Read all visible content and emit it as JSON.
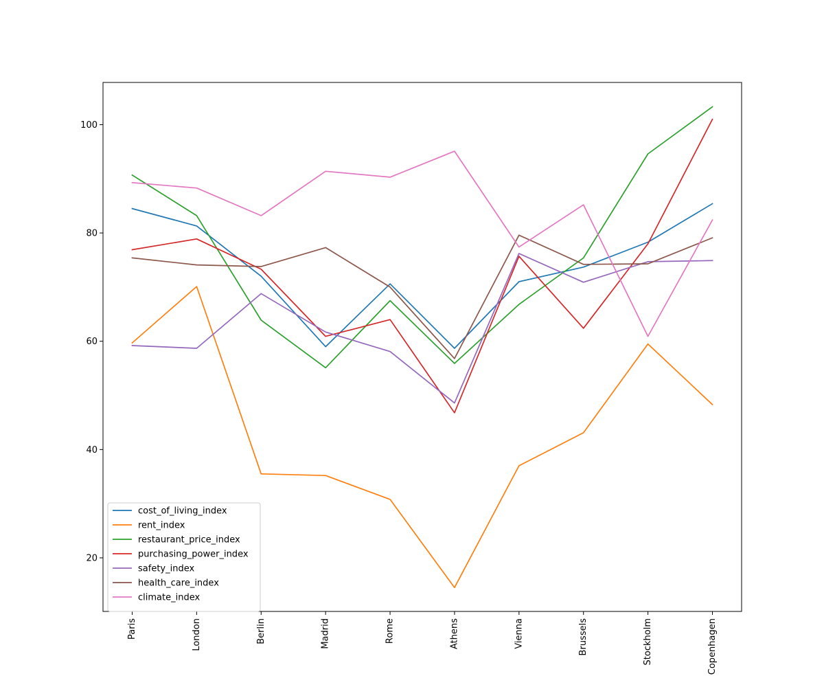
{
  "chart_data": {
    "type": "line",
    "title": "",
    "xlabel": "",
    "ylabel": "",
    "categories": [
      "Paris",
      "London",
      "Berlin",
      "Madrid",
      "Rome",
      "Athens",
      "Vienna",
      "Brussels",
      "Stockholm",
      "Copenhagen"
    ],
    "ylim": [
      10.1,
      107.8
    ],
    "yticks": [
      "20",
      "40",
      "60",
      "80",
      "100"
    ],
    "grid": false,
    "legend_position": "lower-left",
    "series": [
      {
        "name": "cost_of_living_index",
        "color": "#1f77b4",
        "values": [
          84.5,
          81.3,
          72.0,
          59.0,
          70.6,
          58.7,
          71.0,
          73.7,
          78.3,
          85.4
        ]
      },
      {
        "name": "rent_index",
        "color": "#ff7f0e",
        "values": [
          59.7,
          70.1,
          35.5,
          35.2,
          30.8,
          14.5,
          37.0,
          43.1,
          59.5,
          48.3
        ]
      },
      {
        "name": "restaurant_price_index",
        "color": "#2ca02c",
        "values": [
          90.7,
          83.2,
          63.9,
          55.1,
          67.5,
          55.9,
          66.8,
          75.4,
          94.6,
          103.3
        ]
      },
      {
        "name": "purchasing_power_index",
        "color": "#d62728",
        "values": [
          76.9,
          78.9,
          73.3,
          60.9,
          64.0,
          46.8,
          75.7,
          62.4,
          78.0,
          101.0
        ]
      },
      {
        "name": "safety_index",
        "color": "#9467bd",
        "values": [
          59.2,
          58.7,
          68.8,
          61.7,
          58.1,
          48.6,
          76.2,
          70.9,
          74.7,
          74.9
        ]
      },
      {
        "name": "health_care_index",
        "color": "#8c564b",
        "values": [
          75.4,
          74.1,
          73.8,
          77.3,
          70.0,
          56.8,
          79.6,
          74.2,
          74.3,
          79.1
        ]
      },
      {
        "name": "climate_index",
        "color": "#e377c2",
        "values": [
          89.3,
          88.3,
          83.2,
          91.4,
          90.3,
          95.1,
          77.4,
          85.2,
          60.9,
          82.4
        ]
      }
    ]
  }
}
